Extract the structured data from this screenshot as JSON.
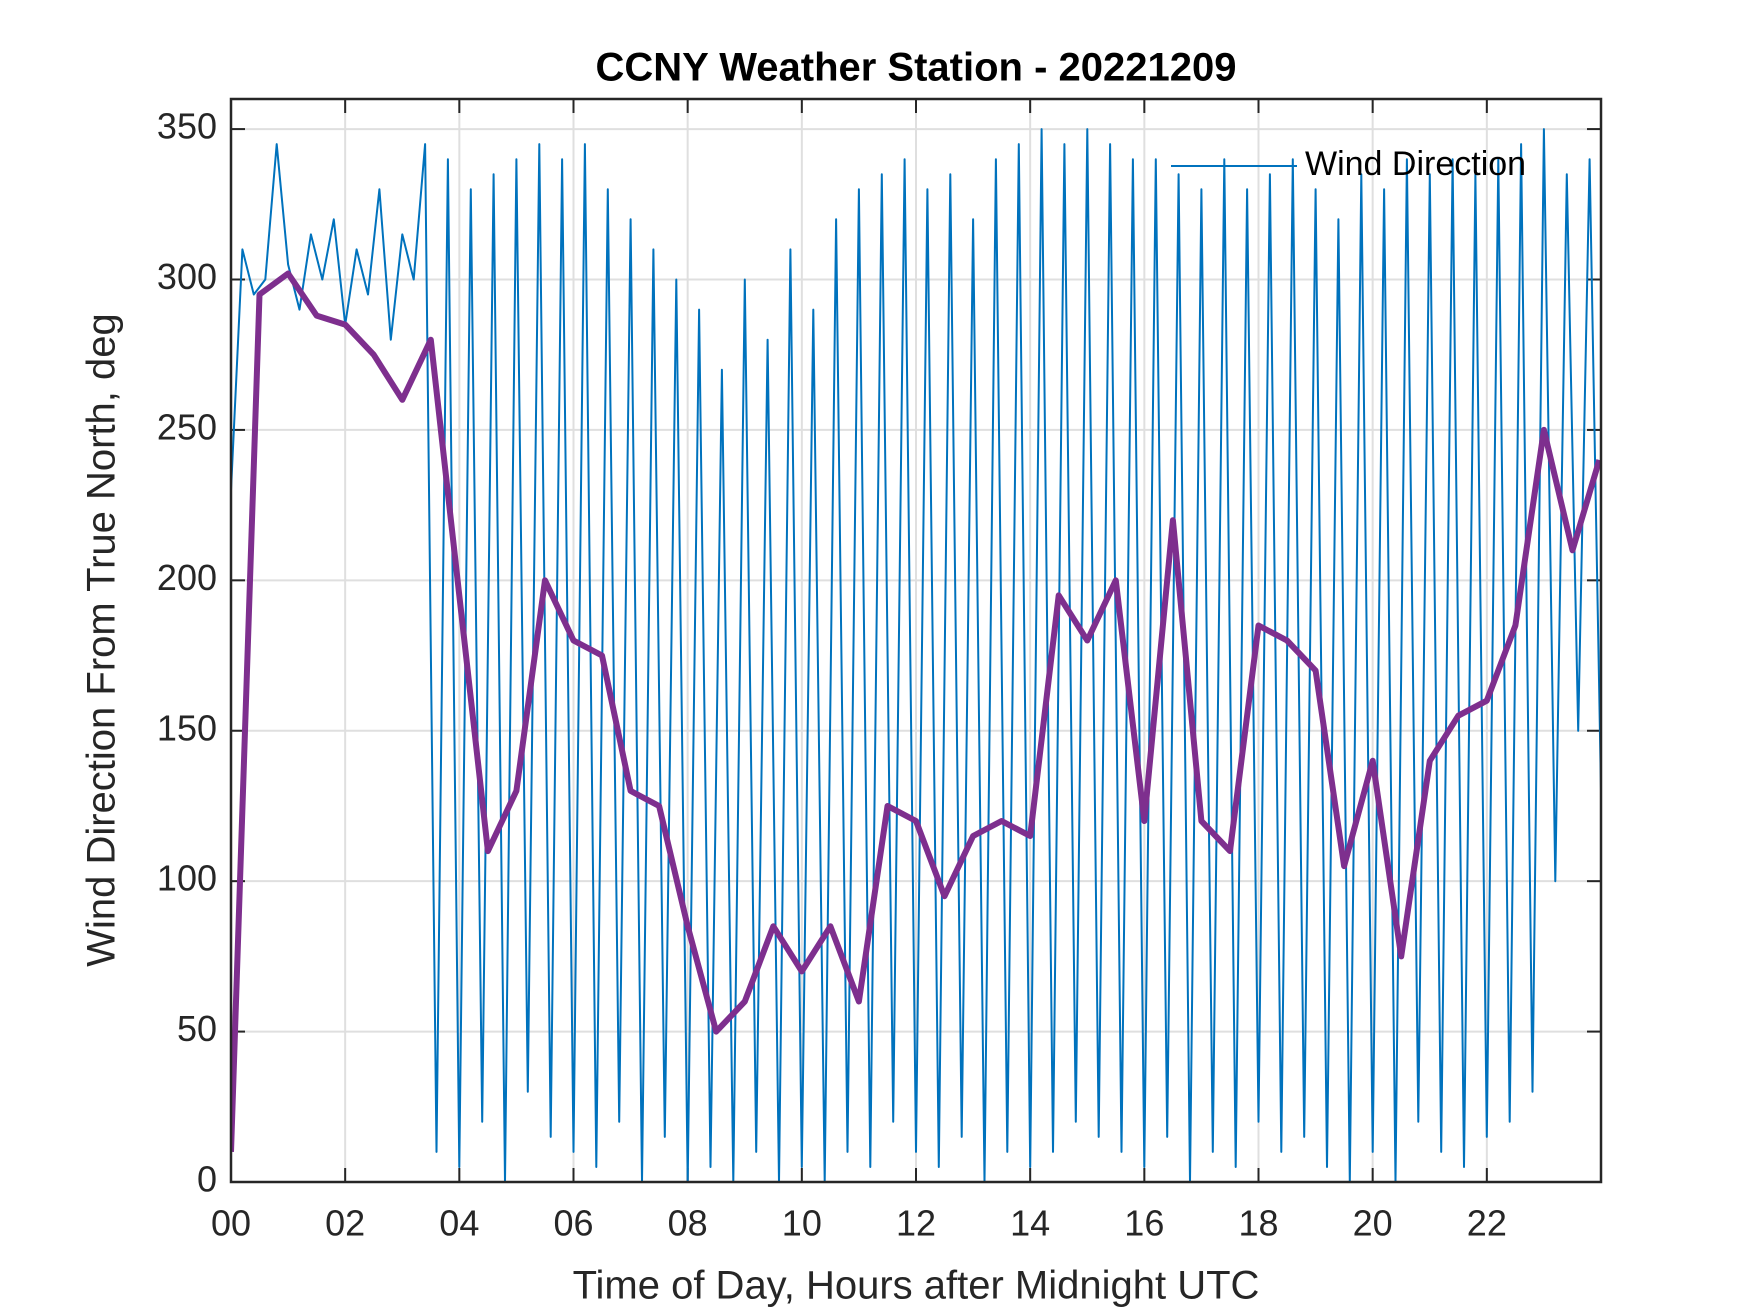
{
  "chart_data": {
    "type": "line",
    "title": "CCNY Weather Station - 20221209",
    "xlabel": "Time of Day, Hours after Midnight UTC",
    "ylabel": "Wind Direction From True North, deg",
    "xlim": [
      0,
      24
    ],
    "ylim": [
      0,
      360
    ],
    "xticks": [
      {
        "value": 0,
        "label": "00"
      },
      {
        "value": 2,
        "label": "02"
      },
      {
        "value": 4,
        "label": "04"
      },
      {
        "value": 6,
        "label": "06"
      },
      {
        "value": 8,
        "label": "08"
      },
      {
        "value": 10,
        "label": "10"
      },
      {
        "value": 12,
        "label": "12"
      },
      {
        "value": 14,
        "label": "14"
      },
      {
        "value": 16,
        "label": "16"
      },
      {
        "value": 18,
        "label": "18"
      },
      {
        "value": 20,
        "label": "20"
      },
      {
        "value": 22,
        "label": "22"
      }
    ],
    "yticks": [
      0,
      50,
      100,
      150,
      200,
      250,
      300,
      350
    ],
    "grid": true,
    "legend": "northeast",
    "series": [
      {
        "name": "Wind Direction",
        "color": "#0072bd",
        "x": [
          0,
          0.2,
          0.4,
          0.6,
          0.8,
          1,
          1.2,
          1.4,
          1.6,
          1.8,
          2,
          2.2,
          2.4,
          2.6,
          2.8,
          3,
          3.2,
          3.4,
          3.6,
          3.8,
          4,
          4.2,
          4.4,
          4.6,
          4.8,
          5,
          5.2,
          5.4,
          5.6,
          5.8,
          6,
          6.2,
          6.4,
          6.6,
          6.8,
          7,
          7.2,
          7.4,
          7.6,
          7.8,
          8,
          8.2,
          8.4,
          8.6,
          8.8,
          9,
          9.2,
          9.4,
          9.6,
          9.8,
          10,
          10.2,
          10.4,
          10.6,
          10.8,
          11,
          11.2,
          11.4,
          11.6,
          11.8,
          12,
          12.2,
          12.4,
          12.6,
          12.8,
          13,
          13.2,
          13.4,
          13.6,
          13.8,
          14,
          14.2,
          14.4,
          14.6,
          14.8,
          15,
          15.2,
          15.4,
          15.6,
          15.8,
          16,
          16.2,
          16.4,
          16.6,
          16.8,
          17,
          17.2,
          17.4,
          17.6,
          17.8,
          18,
          18.2,
          18.4,
          18.6,
          18.8,
          19,
          19.2,
          19.4,
          19.6,
          19.8,
          20,
          20.2,
          20.4,
          20.6,
          20.8,
          21,
          21.2,
          21.4,
          21.6,
          21.8,
          22,
          22.2,
          22.4,
          22.6,
          22.8,
          23,
          23.2,
          23.4,
          23.6,
          23.8,
          24
        ],
        "values": [
          230,
          310,
          295,
          300,
          345,
          305,
          290,
          315,
          300,
          320,
          285,
          310,
          295,
          330,
          280,
          315,
          300,
          345,
          10,
          340,
          5,
          330,
          20,
          335,
          0,
          340,
          30,
          345,
          15,
          340,
          10,
          345,
          5,
          330,
          20,
          320,
          0,
          310,
          15,
          300,
          0,
          290,
          5,
          270,
          0,
          300,
          10,
          280,
          0,
          310,
          5,
          290,
          0,
          320,
          10,
          330,
          5,
          335,
          20,
          340,
          10,
          330,
          5,
          335,
          15,
          320,
          0,
          340,
          10,
          345,
          5,
          350,
          10,
          345,
          20,
          350,
          15,
          345,
          10,
          340,
          5,
          340,
          15,
          335,
          0,
          330,
          10,
          340,
          5,
          330,
          20,
          335,
          10,
          340,
          15,
          330,
          5,
          320,
          0,
          335,
          10,
          330,
          0,
          340,
          20,
          335,
          10,
          340,
          5,
          335,
          15,
          340,
          20,
          345,
          30,
          350,
          100,
          335,
          150,
          340,
          130
        ]
      },
      {
        "color": "#7e2f8e",
        "x": [
          0,
          0.5,
          1,
          1.5,
          2,
          2.5,
          3,
          3.5,
          4,
          4.5,
          5,
          5.5,
          6,
          6.5,
          7,
          7.5,
          8,
          8.5,
          9,
          9.5,
          10,
          10.5,
          11,
          11.5,
          12,
          12.5,
          13,
          13.5,
          14,
          14.5,
          15,
          15.5,
          16,
          16.5,
          17,
          17.5,
          18,
          18.5,
          19,
          19.5,
          20,
          20.5,
          21,
          21.5,
          22,
          22.5,
          23,
          23.5,
          23.97
        ],
        "values": [
          10,
          295,
          302,
          288,
          285,
          275,
          260,
          280,
          195,
          110,
          130,
          200,
          180,
          175,
          130,
          125,
          85,
          50,
          60,
          85,
          70,
          85,
          60,
          125,
          120,
          95,
          115,
          120,
          115,
          195,
          180,
          200,
          120,
          220,
          120,
          110,
          185,
          180,
          170,
          105,
          140,
          75,
          140,
          155,
          160,
          185,
          250,
          210,
          240
        ]
      }
    ]
  }
}
